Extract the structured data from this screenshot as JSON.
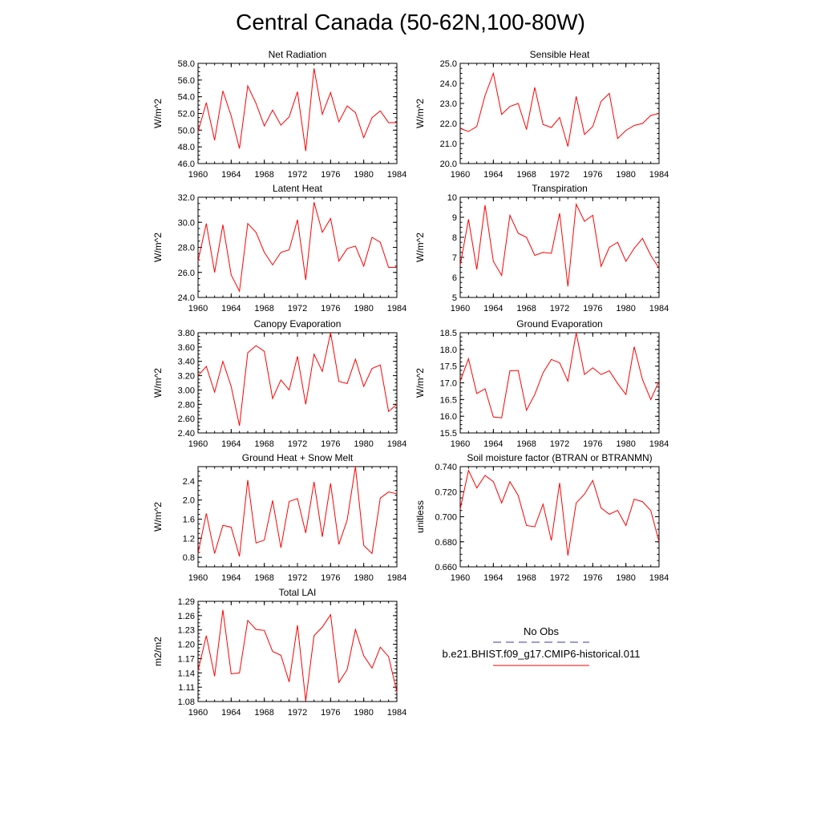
{
  "title": "Central Canada (50-62N,100-80W)",
  "colors": {
    "model_line": "#ff0000",
    "obs_line": "#3b3bb0",
    "axis": "#000000"
  },
  "legend": {
    "obs_label": "No Obs",
    "model_label": "b.e21.BHIST.f09_g17.CMIP6-historical.011"
  },
  "chart_data": [
    {
      "type": "line",
      "title": "Net Radiation",
      "ylabel": "W/m^2",
      "ylim": [
        46,
        58
      ],
      "yticks": [
        "46.0",
        "48.0",
        "50.0",
        "52.0",
        "54.0",
        "56.0",
        "58.0"
      ],
      "ytick_values": [
        46,
        48,
        50,
        52,
        54,
        56,
        58
      ],
      "xlim": [
        1960,
        1984
      ],
      "xticks": [
        "1960",
        "1964",
        "1968",
        "1972",
        "1976",
        "1980",
        "1984"
      ],
      "x": [
        1960,
        1961,
        1962,
        1963,
        1964,
        1965,
        1966,
        1967,
        1968,
        1969,
        1970,
        1971,
        1972,
        1973,
        1974,
        1975,
        1976,
        1977,
        1978,
        1979,
        1980,
        1981,
        1982,
        1983,
        1984
      ],
      "series": [
        {
          "values": [
            49.8,
            53.3,
            48.8,
            54.7,
            51.7,
            47.8,
            55.3,
            53.2,
            50.5,
            52.4,
            50.6,
            51.6,
            54.6,
            47.5,
            57.4,
            51.9,
            54.5,
            51.0,
            52.9,
            52.1,
            49.1,
            51.5,
            52.3,
            50.9,
            50.9
          ]
        }
      ]
    },
    {
      "type": "line",
      "title": "Sensible Heat",
      "ylabel": "W/m^2",
      "ylim": [
        20,
        25
      ],
      "yticks": [
        "20.0",
        "21.0",
        "22.0",
        "23.0",
        "24.0",
        "25.0"
      ],
      "ytick_values": [
        20,
        21,
        22,
        23,
        24,
        25
      ],
      "xlim": [
        1960,
        1984
      ],
      "xticks": [
        "1960",
        "1964",
        "1968",
        "1972",
        "1976",
        "1980",
        "1984"
      ],
      "x": [
        1960,
        1961,
        1962,
        1963,
        1964,
        1965,
        1966,
        1967,
        1968,
        1969,
        1970,
        1971,
        1972,
        1973,
        1974,
        1975,
        1976,
        1977,
        1978,
        1979,
        1980,
        1981,
        1982,
        1983,
        1984
      ],
      "series": [
        {
          "values": [
            21.75,
            21.6,
            21.85,
            23.4,
            24.5,
            22.45,
            22.85,
            23.0,
            21.7,
            23.8,
            21.95,
            21.8,
            22.3,
            20.85,
            23.35,
            21.45,
            21.85,
            23.1,
            23.5,
            21.25,
            21.65,
            21.9,
            22.0,
            22.4,
            22.5
          ]
        }
      ]
    },
    {
      "type": "line",
      "title": "Latent Heat",
      "ylabel": "W/m^2",
      "ylim": [
        24,
        32
      ],
      "yticks": [
        "24.0",
        "26.0",
        "28.0",
        "30.0",
        "32.0"
      ],
      "ytick_values": [
        24,
        26,
        28,
        30,
        32
      ],
      "xlim": [
        1960,
        1984
      ],
      "xticks": [
        "1960",
        "1964",
        "1968",
        "1972",
        "1976",
        "1980",
        "1984"
      ],
      "x": [
        1960,
        1961,
        1962,
        1963,
        1964,
        1965,
        1966,
        1967,
        1968,
        1969,
        1970,
        1971,
        1972,
        1973,
        1974,
        1975,
        1976,
        1977,
        1978,
        1979,
        1980,
        1981,
        1982,
        1983,
        1984
      ],
      "series": [
        {
          "values": [
            26.9,
            29.9,
            26.0,
            29.8,
            25.8,
            24.5,
            29.9,
            29.2,
            27.6,
            26.6,
            27.6,
            27.8,
            30.2,
            25.4,
            31.6,
            29.2,
            30.3,
            26.9,
            27.9,
            28.1,
            26.5,
            28.8,
            28.4,
            26.4,
            26.4
          ]
        }
      ]
    },
    {
      "type": "line",
      "title": "Transpiration",
      "ylabel": "W/m^2",
      "ylim": [
        5,
        10
      ],
      "yticks": [
        "5",
        "6",
        "7",
        "8",
        "9",
        "10"
      ],
      "ytick_values": [
        5,
        6,
        7,
        8,
        9,
        10
      ],
      "xlim": [
        1960,
        1984
      ],
      "xticks": [
        "1960",
        "1964",
        "1968",
        "1972",
        "1976",
        "1980",
        "1984"
      ],
      "x": [
        1960,
        1961,
        1962,
        1963,
        1964,
        1965,
        1966,
        1967,
        1968,
        1969,
        1970,
        1971,
        1972,
        1973,
        1974,
        1975,
        1976,
        1977,
        1978,
        1979,
        1980,
        1981,
        1982,
        1983,
        1984
      ],
      "series": [
        {
          "values": [
            6.6,
            8.9,
            6.4,
            9.6,
            6.8,
            6.1,
            9.1,
            8.2,
            8.0,
            7.1,
            7.25,
            7.2,
            9.2,
            5.55,
            9.65,
            8.8,
            9.1,
            6.55,
            7.5,
            7.75,
            6.8,
            7.45,
            7.95,
            7.1,
            6.45
          ]
        }
      ]
    },
    {
      "type": "line",
      "title": "Canopy Evaporation",
      "ylabel": "W/m^2",
      "ylim": [
        2.4,
        3.8
      ],
      "yticks": [
        "2.40",
        "2.60",
        "2.80",
        "3.00",
        "3.20",
        "3.40",
        "3.60",
        "3.80"
      ],
      "ytick_values": [
        2.4,
        2.6,
        2.8,
        3.0,
        3.2,
        3.4,
        3.6,
        3.8
      ],
      "xlim": [
        1960,
        1984
      ],
      "xticks": [
        "1960",
        "1964",
        "1968",
        "1972",
        "1976",
        "1980",
        "1984"
      ],
      "x": [
        1960,
        1961,
        1962,
        1963,
        1964,
        1965,
        1966,
        1967,
        1968,
        1969,
        1970,
        1971,
        1972,
        1973,
        1974,
        1975,
        1976,
        1977,
        1978,
        1979,
        1980,
        1981,
        1982,
        1983,
        1984
      ],
      "series": [
        {
          "values": [
            3.2,
            3.33,
            2.97,
            3.4,
            3.05,
            2.5,
            3.52,
            3.62,
            3.54,
            2.88,
            3.14,
            3.0,
            3.47,
            2.8,
            3.5,
            3.26,
            3.8,
            3.12,
            3.09,
            3.43,
            3.05,
            3.3,
            3.35,
            2.7,
            2.8
          ]
        }
      ]
    },
    {
      "type": "line",
      "title": "Ground Evaporation",
      "ylabel": "W/m^2",
      "ylim": [
        15.5,
        18.5
      ],
      "yticks": [
        "15.5",
        "16.0",
        "16.5",
        "17.0",
        "17.5",
        "18.0",
        "18.5"
      ],
      "ytick_values": [
        15.5,
        16.0,
        16.5,
        17.0,
        17.5,
        18.0,
        18.5
      ],
      "xlim": [
        1960,
        1984
      ],
      "xticks": [
        "1960",
        "1964",
        "1968",
        "1972",
        "1976",
        "1980",
        "1984"
      ],
      "x": [
        1960,
        1961,
        1962,
        1963,
        1964,
        1965,
        1966,
        1967,
        1968,
        1969,
        1970,
        1971,
        1972,
        1973,
        1974,
        1975,
        1976,
        1977,
        1978,
        1979,
        1980,
        1981,
        1982,
        1983,
        1984
      ],
      "series": [
        {
          "values": [
            17.05,
            17.72,
            16.68,
            16.82,
            15.98,
            15.95,
            17.36,
            17.37,
            16.18,
            16.65,
            17.3,
            17.7,
            17.6,
            17.05,
            18.5,
            17.25,
            17.45,
            17.25,
            17.36,
            16.98,
            16.65,
            18.08,
            17.1,
            16.5,
            17.05
          ]
        }
      ]
    },
    {
      "type": "line",
      "title": "Ground Heat + Snow Melt",
      "ylabel": "W/m^2",
      "ylim": [
        0.6,
        2.7
      ],
      "yticks": [
        "0.8",
        "1.2",
        "1.6",
        "2.0",
        "2.4"
      ],
      "ytick_values": [
        0.8,
        1.2,
        1.6,
        2.0,
        2.4
      ],
      "xlim": [
        1960,
        1984
      ],
      "xticks": [
        "1960",
        "1964",
        "1968",
        "1972",
        "1976",
        "1980",
        "1984"
      ],
      "x": [
        1960,
        1961,
        1962,
        1963,
        1964,
        1965,
        1966,
        1967,
        1968,
        1969,
        1970,
        1971,
        1972,
        1973,
        1974,
        1975,
        1976,
        1977,
        1978,
        1979,
        1980,
        1981,
        1982,
        1983,
        1984
      ],
      "series": [
        {
          "values": [
            0.88,
            1.72,
            0.88,
            1.47,
            1.43,
            0.82,
            2.42,
            1.1,
            1.16,
            1.99,
            1.0,
            1.97,
            2.03,
            1.31,
            2.38,
            1.23,
            2.35,
            1.07,
            1.58,
            2.7,
            1.05,
            0.88,
            2.04,
            2.17,
            2.13
          ]
        }
      ]
    },
    {
      "type": "line",
      "title": "Soil moisture factor (BTRAN or BTRANMN)",
      "ylabel": "unitless",
      "ylim": [
        0.66,
        0.74
      ],
      "yticks": [
        "0.660",
        "0.680",
        "0.700",
        "0.720",
        "0.740"
      ],
      "ytick_values": [
        0.66,
        0.68,
        0.7,
        0.72,
        0.74
      ],
      "xlim": [
        1960,
        1984
      ],
      "xticks": [
        "1960",
        "1964",
        "1968",
        "1972",
        "1976",
        "1980",
        "1984"
      ],
      "x": [
        1960,
        1961,
        1962,
        1963,
        1964,
        1965,
        1966,
        1967,
        1968,
        1969,
        1970,
        1971,
        1972,
        1973,
        1974,
        1975,
        1976,
        1977,
        1978,
        1979,
        1980,
        1981,
        1982,
        1983,
        1984
      ],
      "series": [
        {
          "values": [
            0.706,
            0.737,
            0.723,
            0.733,
            0.728,
            0.711,
            0.728,
            0.717,
            0.693,
            0.692,
            0.71,
            0.681,
            0.727,
            0.669,
            0.711,
            0.718,
            0.729,
            0.707,
            0.702,
            0.705,
            0.693,
            0.714,
            0.712,
            0.705,
            0.68
          ]
        }
      ]
    },
    {
      "type": "line",
      "title": "Total LAI",
      "ylabel": "m2/m2",
      "ylim": [
        1.08,
        1.29
      ],
      "yticks": [
        "1.08",
        "1.11",
        "1.14",
        "1.17",
        "1.20",
        "1.23",
        "1.26",
        "1.29"
      ],
      "ytick_values": [
        1.08,
        1.11,
        1.14,
        1.17,
        1.2,
        1.23,
        1.26,
        1.29
      ],
      "xlim": [
        1960,
        1984
      ],
      "xticks": [
        "1960",
        "1964",
        "1968",
        "1972",
        "1976",
        "1980",
        "1984"
      ],
      "x": [
        1960,
        1961,
        1962,
        1963,
        1964,
        1965,
        1966,
        1967,
        1968,
        1969,
        1970,
        1971,
        1972,
        1973,
        1974,
        1975,
        1976,
        1977,
        1978,
        1979,
        1980,
        1981,
        1982,
        1983,
        1984
      ],
      "series": [
        {
          "values": [
            1.145,
            1.218,
            1.133,
            1.272,
            1.138,
            1.14,
            1.25,
            1.231,
            1.229,
            1.185,
            1.177,
            1.121,
            1.24,
            1.081,
            1.218,
            1.236,
            1.262,
            1.12,
            1.147,
            1.231,
            1.176,
            1.15,
            1.194,
            1.174,
            1.1
          ]
        }
      ]
    }
  ]
}
